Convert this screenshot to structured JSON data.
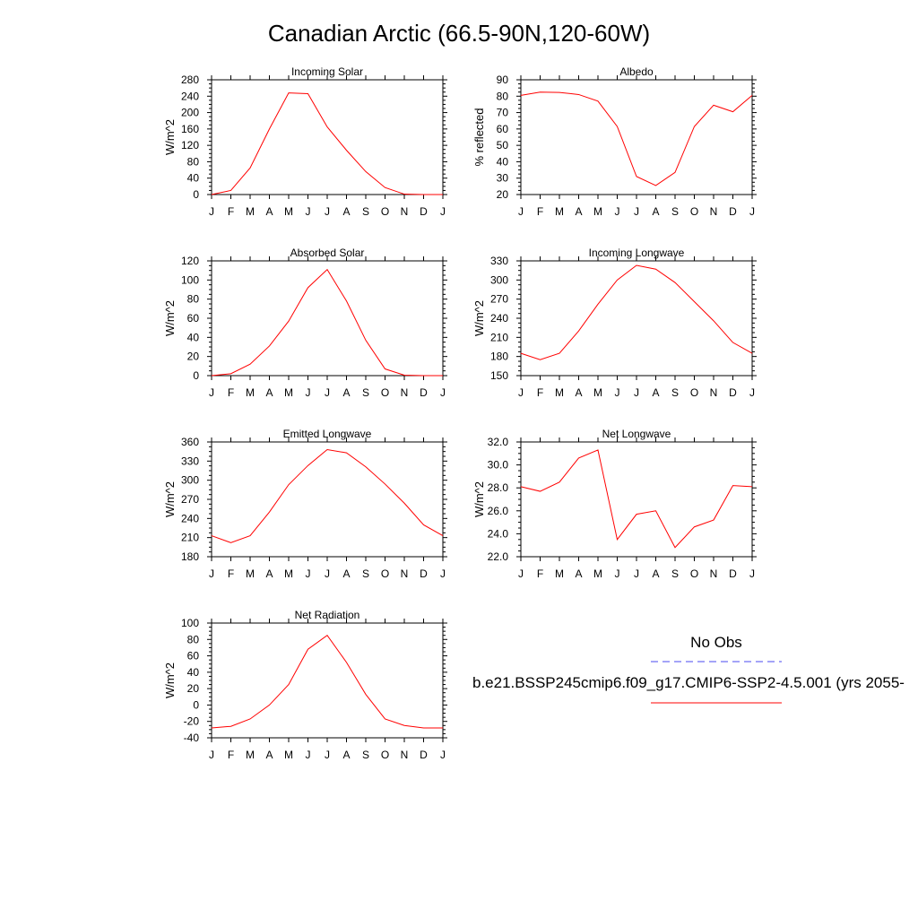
{
  "figure_title": "Canadian Arctic (66.5-90N,120-60W)",
  "legend": {
    "entries": [
      {
        "label": "No Obs",
        "color": "#4a4af0",
        "dash": true
      },
      {
        "label": "b.e21.BSSP245cmip6.f09_g17.CMIP6-SSP2-4.5.001 (yrs 2055-",
        "color": "#ff0000",
        "dash": false
      }
    ]
  },
  "colors": {
    "series": "#ff0000",
    "obs": "#4a4af0",
    "axis": "#000000"
  },
  "chart_data": [
    {
      "type": "line",
      "title": "Incoming Solar",
      "ylabel": "W/m^2",
      "xlabel": "",
      "x": [
        "J",
        "F",
        "M",
        "A",
        "M",
        "J",
        "J",
        "A",
        "S",
        "O",
        "N",
        "D",
        "J"
      ],
      "ylim": [
        0,
        280
      ],
      "yticks": [
        "0",
        "40",
        "80",
        "120",
        "160",
        "200",
        "240",
        "280"
      ],
      "series": [
        {
          "values": [
            0,
            10,
            65,
            160,
            248,
            246,
            165,
            108,
            56,
            17,
            1,
            0,
            0
          ]
        }
      ]
    },
    {
      "type": "line",
      "title": "Albedo",
      "ylabel": "% reflected",
      "xlabel": "",
      "x": [
        "J",
        "F",
        "M",
        "A",
        "M",
        "J",
        "J",
        "A",
        "S",
        "O",
        "N",
        "D",
        "J"
      ],
      "ylim": [
        20,
        90
      ],
      "yticks": [
        "20",
        "30",
        "40",
        "50",
        "60",
        "70",
        "80",
        "90"
      ],
      "series": [
        {
          "values": [
            80.5,
            82.5,
            82.3,
            81,
            77,
            61.5,
            31,
            25.5,
            33.5,
            61.5,
            74.5,
            70.5,
            80.5
          ]
        }
      ]
    },
    {
      "type": "line",
      "title": "Absorbed Solar",
      "ylabel": "W/m^2",
      "xlabel": "",
      "x": [
        "J",
        "F",
        "M",
        "A",
        "M",
        "J",
        "J",
        "A",
        "S",
        "O",
        "N",
        "D",
        "J"
      ],
      "ylim": [
        0,
        120
      ],
      "yticks": [
        "0",
        "20",
        "40",
        "60",
        "80",
        "100",
        "120"
      ],
      "series": [
        {
          "values": [
            0,
            2,
            12,
            31,
            57,
            92,
            111,
            78,
            37,
            7,
            0.5,
            0,
            0
          ]
        }
      ]
    },
    {
      "type": "line",
      "title": "Incoming Longwave",
      "ylabel": "W/m^2",
      "xlabel": "",
      "x": [
        "J",
        "F",
        "M",
        "A",
        "M",
        "J",
        "J",
        "A",
        "S",
        "O",
        "N",
        "D",
        "J"
      ],
      "ylim": [
        150,
        330
      ],
      "yticks": [
        "150",
        "180",
        "210",
        "240",
        "270",
        "300",
        "330"
      ],
      "series": [
        {
          "values": [
            185,
            175,
            185,
            220,
            262,
            300,
            323,
            317,
            296,
            266,
            236,
            202,
            185
          ]
        }
      ]
    },
    {
      "type": "line",
      "title": "Emitted Longwave",
      "ylabel": "W/m^2",
      "xlabel": "",
      "x": [
        "J",
        "F",
        "M",
        "A",
        "M",
        "J",
        "J",
        "A",
        "S",
        "O",
        "N",
        "D",
        "J"
      ],
      "ylim": [
        180,
        360
      ],
      "yticks": [
        "180",
        "210",
        "240",
        "270",
        "300",
        "330",
        "360"
      ],
      "series": [
        {
          "values": [
            213,
            202,
            213,
            250,
            293,
            323,
            348,
            343,
            321,
            294,
            264,
            230,
            213
          ]
        }
      ]
    },
    {
      "type": "line",
      "title": "Net Longwave",
      "ylabel": "W/m^2",
      "xlabel": "",
      "x": [
        "J",
        "F",
        "M",
        "A",
        "M",
        "J",
        "J",
        "A",
        "S",
        "O",
        "N",
        "D",
        "J"
      ],
      "ylim": [
        22,
        32
      ],
      "yticks": [
        "22.0",
        "24.0",
        "26.0",
        "28.0",
        "30.0",
        "32.0"
      ],
      "series": [
        {
          "values": [
            28.1,
            27.7,
            28.5,
            30.6,
            31.3,
            23.5,
            25.7,
            26.0,
            22.8,
            24.6,
            25.2,
            28.2,
            28.1
          ]
        }
      ]
    },
    {
      "type": "line",
      "title": "Net Radiation",
      "ylabel": "W/m^2",
      "xlabel": "",
      "x": [
        "J",
        "F",
        "M",
        "A",
        "M",
        "J",
        "J",
        "A",
        "S",
        "O",
        "N",
        "D",
        "J"
      ],
      "ylim": [
        -40,
        100
      ],
      "yticks": [
        "-40",
        "-20",
        "0",
        "20",
        "40",
        "60",
        "80",
        "100"
      ],
      "series": [
        {
          "values": [
            -28,
            -26,
            -17,
            0,
            25,
            68,
            85,
            52,
            13,
            -17,
            -25,
            -28,
            -28
          ]
        }
      ]
    }
  ]
}
